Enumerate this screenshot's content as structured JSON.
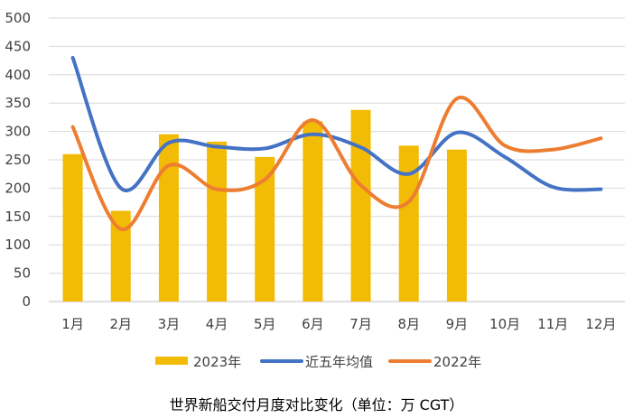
{
  "chart_data": {
    "type": "bar",
    "title": "世界新船交付月度对比变化（单位：万 CGT）",
    "categories": [
      "1月",
      "2月",
      "3月",
      "4月",
      "5月",
      "6月",
      "7月",
      "8月",
      "9月",
      "10月",
      "11月",
      "12月"
    ],
    "ylim": [
      0,
      500
    ],
    "yticks": [
      0,
      50,
      100,
      150,
      200,
      250,
      300,
      350,
      400,
      450,
      500
    ],
    "grid": true,
    "legend_position": "bottom",
    "series": [
      {
        "name": "2023年",
        "kind": "bar",
        "color": "#F2BB05",
        "values": [
          260,
          160,
          295,
          282,
          255,
          318,
          338,
          275,
          268,
          null,
          null,
          null
        ]
      },
      {
        "name": "近五年均值",
        "kind": "line",
        "color": "#4472C4",
        "values": [
          430,
          200,
          280,
          273,
          270,
          295,
          272,
          225,
          298,
          255,
          202,
          198
        ]
      },
      {
        "name": "2022年",
        "kind": "line",
        "color": "#ED7D31",
        "values": [
          308,
          128,
          240,
          198,
          215,
          320,
          205,
          176,
          358,
          275,
          268,
          288
        ]
      }
    ]
  }
}
